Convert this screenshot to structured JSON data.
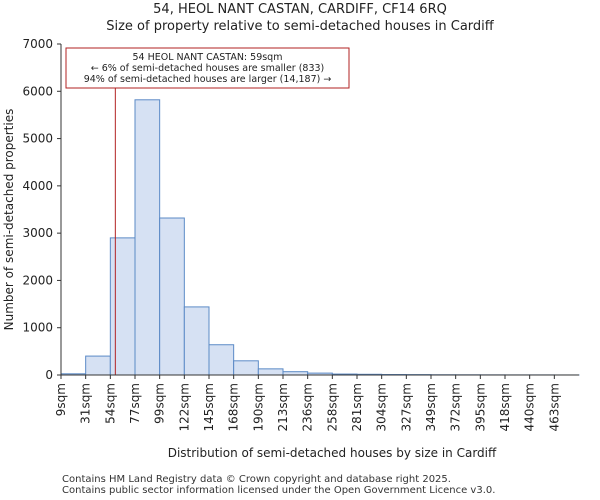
{
  "chart_data": {
    "type": "bar",
    "title": "54, HEOL NANT CASTAN, CARDIFF, CF14 6RQ",
    "subtitle": "Size of property relative to semi-detached houses in Cardiff",
    "xlabel": "Distribution of semi-detached houses by size in Cardiff",
    "ylabel": "Number of semi-detached properties",
    "categories": [
      "9sqm",
      "31sqm",
      "54sqm",
      "77sqm",
      "99sqm",
      "122sqm",
      "145sqm",
      "168sqm",
      "190sqm",
      "213sqm",
      "236sqm",
      "258sqm",
      "281sqm",
      "304sqm",
      "327sqm",
      "349sqm",
      "372sqm",
      "395sqm",
      "418sqm",
      "440sqm",
      "463sqm"
    ],
    "values": [
      25,
      400,
      2900,
      5820,
      3320,
      1440,
      640,
      300,
      130,
      70,
      40,
      20,
      15,
      10,
      8,
      5,
      4,
      3,
      2,
      2,
      1
    ],
    "ylim": [
      0,
      7000
    ],
    "yticks": [
      0,
      1000,
      2000,
      3000,
      4000,
      5000,
      6000,
      7000
    ],
    "bar_color": "#d6e1f3",
    "bar_edge_color": "#5b8ac6",
    "marker": {
      "value_sqm": 59,
      "color": "#b22222"
    },
    "annotation": {
      "line1": "54 HEOL NANT CASTAN: 59sqm",
      "line2": "← 6% of semi-detached houses are smaller (833)",
      "line3": "94% of semi-detached houses are larger (14,187) →"
    }
  },
  "footer": {
    "line1": "Contains HM Land Registry data © Crown copyright and database right 2025.",
    "line2": "Contains public sector information licensed under the Open Government Licence v3.0."
  }
}
